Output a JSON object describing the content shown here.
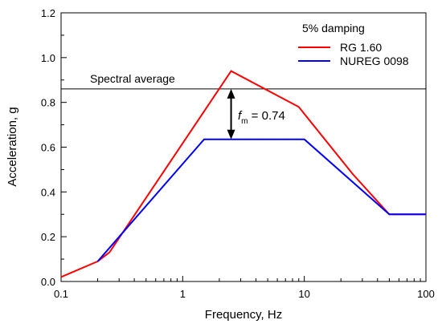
{
  "chart_data": {
    "type": "line",
    "xlabel": "Frequency, Hz",
    "ylabel": "Acceleration, g",
    "xscale": "log",
    "xlim": [
      0.1,
      100
    ],
    "ylim": [
      0.0,
      1.2
    ],
    "x_ticks": [
      0.1,
      1,
      10,
      100
    ],
    "x_tick_labels": [
      "0.1",
      "1",
      "10",
      "100"
    ],
    "y_ticks": [
      0.0,
      0.2,
      0.4,
      0.6,
      0.8,
      1.0,
      1.2
    ],
    "y_tick_labels": [
      "0.0",
      "0.2",
      "0.4",
      "0.6",
      "0.8",
      "1.0",
      "1.2"
    ],
    "grid": false,
    "legend": {
      "title": "5% damping",
      "placement": "top-right"
    },
    "series": [
      {
        "name": "RG 1.60",
        "color": "#ff0000",
        "x": [
          0.1,
          0.2,
          0.25,
          2.5,
          9,
          25,
          50,
          100
        ],
        "y": [
          0.02,
          0.09,
          0.13,
          0.94,
          0.78,
          0.48,
          0.3,
          0.3
        ]
      },
      {
        "name": "NUREG 0098",
        "color": "#0000ff",
        "x": [
          0.2,
          1.5,
          10,
          50,
          100
        ],
        "y": [
          0.09,
          0.635,
          0.635,
          0.3,
          0.3
        ]
      }
    ],
    "reference_line": {
      "label": "Spectral average",
      "y": 0.86,
      "color": "#000000"
    },
    "annotation": {
      "symbol": "f",
      "subscript": "m",
      "text": " = 0.74",
      "x": 2.5,
      "y_top": 0.86,
      "y_bottom": 0.635
    }
  }
}
